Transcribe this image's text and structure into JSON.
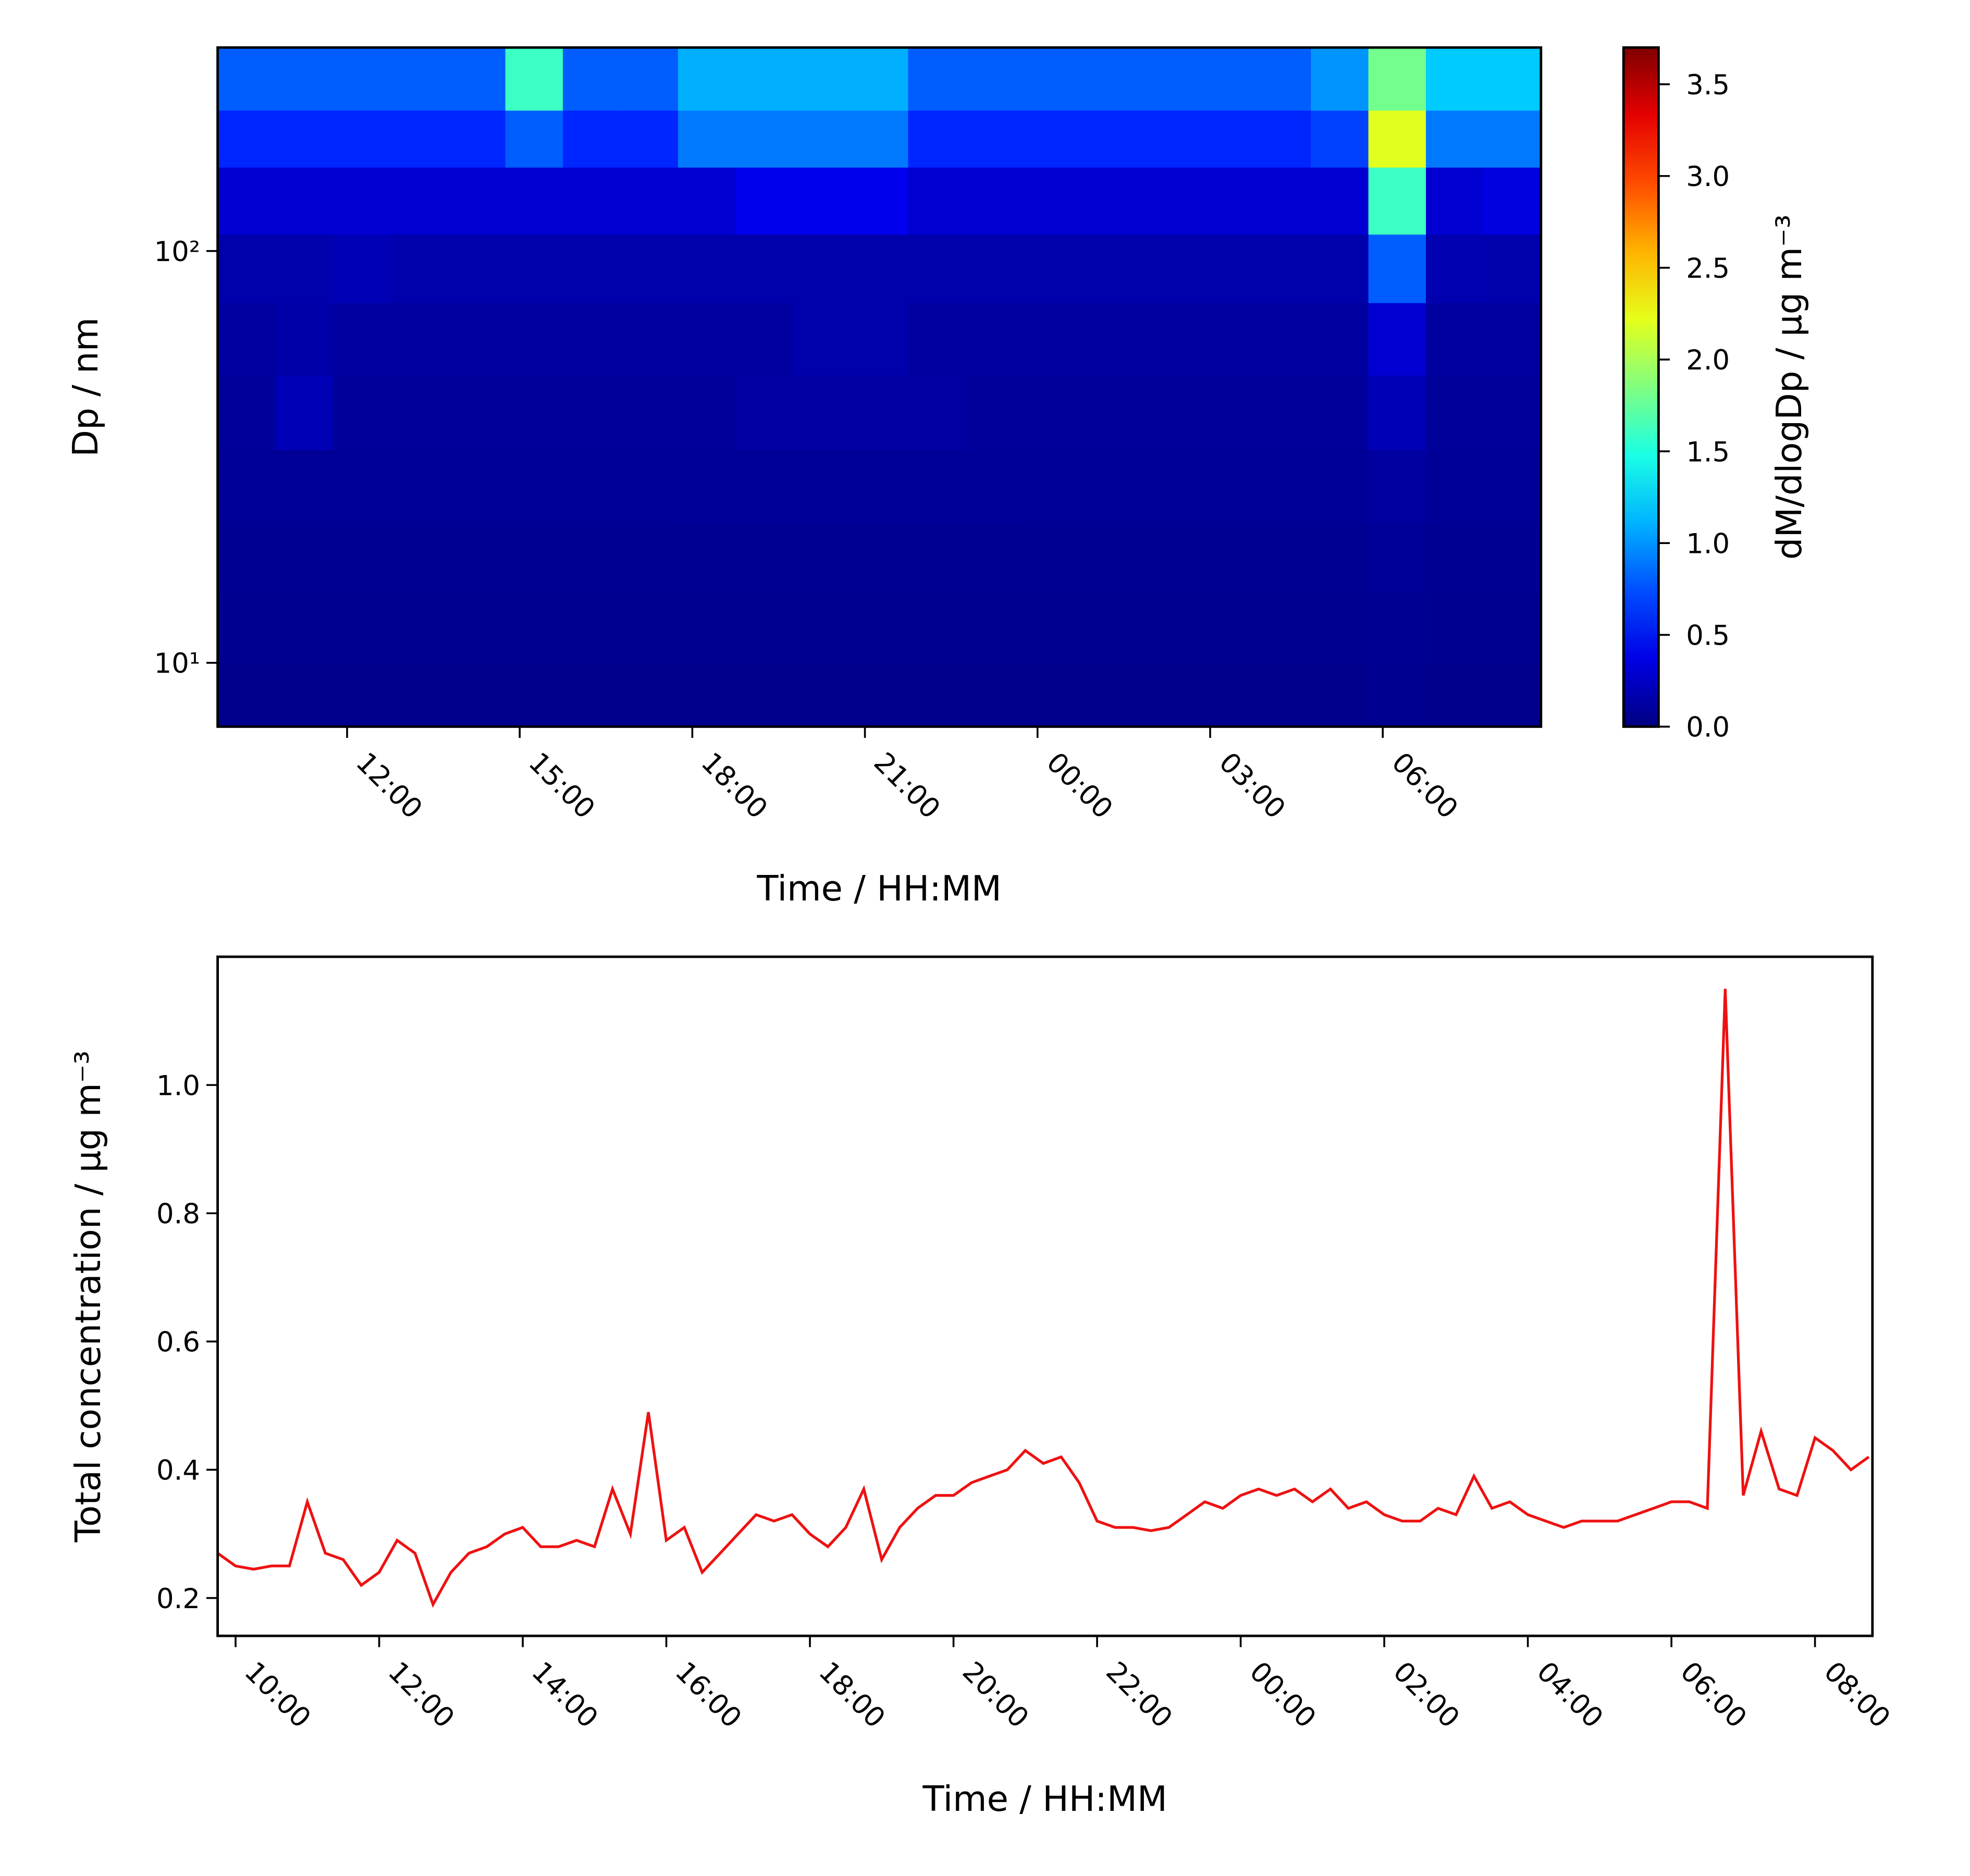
{
  "chart_data": [
    {
      "type": "heatmap",
      "colormap": "jet",
      "yscale": "log",
      "xlabel": "Time / HH:MM",
      "ylabel": "Dp / nm",
      "xlim": [
        9.75,
        32.75
      ],
      "ylim": [
        7,
        312
      ],
      "xticks": [
        {
          "value": 12,
          "label": "12:00"
        },
        {
          "value": 15,
          "label": "15:00"
        },
        {
          "value": 18,
          "label": "18:00"
        },
        {
          "value": 21,
          "label": "21:00"
        },
        {
          "value": 24,
          "label": "00:00"
        },
        {
          "value": 27,
          "label": "03:00"
        },
        {
          "value": 30,
          "label": "06:00"
        }
      ],
      "yticks": [
        {
          "value": 10,
          "label": "10¹"
        },
        {
          "value": 100,
          "label": "10²"
        }
      ],
      "xbins": [
        9.75,
        10.75,
        11.75,
        12.75,
        13.75,
        14.75,
        15.75,
        16.75,
        17.75,
        18.75,
        19.75,
        20.75,
        21.75,
        22.75,
        23.75,
        24.75,
        25.75,
        26.75,
        27.75,
        28.75,
        29.75,
        30.75,
        31.75,
        32.75
      ],
      "ybins": [
        7,
        10,
        15,
        22,
        33,
        50,
        75,
        110,
        160,
        220,
        312
      ],
      "z": [
        [
          0.05,
          0.05,
          0.05,
          0.05,
          0.05,
          0.05,
          0.05,
          0.05,
          0.05,
          0.05,
          0.05,
          0.05,
          0.05,
          0.05,
          0.05,
          0.05,
          0.05,
          0.05,
          0.05,
          0.05,
          0.06,
          0.05,
          0.05
        ],
        [
          0.06,
          0.06,
          0.06,
          0.06,
          0.06,
          0.06,
          0.06,
          0.06,
          0.06,
          0.06,
          0.06,
          0.06,
          0.06,
          0.06,
          0.06,
          0.06,
          0.06,
          0.06,
          0.06,
          0.06,
          0.07,
          0.06,
          0.06
        ],
        [
          0.07,
          0.07,
          0.07,
          0.07,
          0.07,
          0.07,
          0.07,
          0.07,
          0.07,
          0.07,
          0.07,
          0.07,
          0.07,
          0.07,
          0.07,
          0.07,
          0.07,
          0.07,
          0.07,
          0.07,
          0.09,
          0.07,
          0.07
        ],
        [
          0.08,
          0.08,
          0.08,
          0.08,
          0.08,
          0.08,
          0.08,
          0.08,
          0.09,
          0.09,
          0.09,
          0.09,
          0.09,
          0.09,
          0.08,
          0.08,
          0.08,
          0.08,
          0.08,
          0.08,
          0.12,
          0.08,
          0.08
        ],
        [
          0.1,
          0.2,
          0.1,
          0.1,
          0.1,
          0.1,
          0.1,
          0.1,
          0.1,
          0.13,
          0.13,
          0.13,
          0.13,
          0.1,
          0.1,
          0.1,
          0.1,
          0.1,
          0.1,
          0.1,
          0.2,
          0.1,
          0.1
        ],
        [
          0.12,
          0.15,
          0.12,
          0.12,
          0.12,
          0.12,
          0.12,
          0.12,
          0.12,
          0.12,
          0.16,
          0.16,
          0.12,
          0.12,
          0.12,
          0.12,
          0.12,
          0.12,
          0.12,
          0.12,
          0.3,
          0.12,
          0.12
        ],
        [
          0.16,
          0.16,
          0.2,
          0.16,
          0.16,
          0.16,
          0.16,
          0.16,
          0.16,
          0.16,
          0.16,
          0.16,
          0.16,
          0.16,
          0.16,
          0.16,
          0.16,
          0.16,
          0.16,
          0.16,
          0.8,
          0.18,
          0.16
        ],
        [
          0.3,
          0.3,
          0.3,
          0.3,
          0.3,
          0.3,
          0.3,
          0.3,
          0.3,
          0.4,
          0.4,
          0.4,
          0.3,
          0.3,
          0.3,
          0.3,
          0.3,
          0.3,
          0.3,
          0.3,
          1.6,
          0.3,
          0.35
        ],
        [
          0.6,
          0.6,
          0.6,
          0.6,
          0.6,
          0.8,
          0.6,
          0.6,
          0.9,
          0.9,
          0.9,
          0.9,
          0.6,
          0.6,
          0.6,
          0.6,
          0.6,
          0.6,
          0.6,
          0.7,
          2.2,
          0.9,
          0.9
        ],
        [
          0.8,
          0.8,
          0.8,
          0.8,
          0.8,
          1.6,
          0.8,
          0.8,
          1.1,
          1.1,
          1.1,
          1.1,
          0.8,
          0.8,
          0.8,
          0.8,
          0.8,
          0.8,
          0.8,
          1.0,
          1.8,
          1.2,
          1.2
        ]
      ],
      "colorbar": {
        "label": "dM/dlogDp / μg m⁻³",
        "lim": [
          0,
          3.7
        ],
        "ticks": [
          {
            "value": 0,
            "label": "0.0"
          },
          0.5,
          {
            "value": 1,
            "label": "1.0"
          },
          1.5,
          {
            "value": 2,
            "label": "2.0"
          },
          2.5,
          {
            "value": 3,
            "label": "3.0"
          },
          3.5
        ]
      }
    },
    {
      "type": "line",
      "color": "#ee1111",
      "xlabel": "Time / HH:MM",
      "ylabel": "Total concentration / μg m⁻³",
      "xlim": [
        9.75,
        32.8
      ],
      "ylim": [
        0.141,
        1.2
      ],
      "xticks": [
        {
          "value": 10,
          "label": "10:00"
        },
        {
          "value": 12,
          "label": "12:00"
        },
        {
          "value": 14,
          "label": "14:00"
        },
        {
          "value": 16,
          "label": "16:00"
        },
        {
          "value": 18,
          "label": "18:00"
        },
        {
          "value": 20,
          "label": "20:00"
        },
        {
          "value": 22,
          "label": "22:00"
        },
        {
          "value": 24,
          "label": "00:00"
        },
        {
          "value": 26,
          "label": "02:00"
        },
        {
          "value": 28,
          "label": "04:00"
        },
        {
          "value": 30,
          "label": "06:00"
        },
        {
          "value": 32,
          "label": "08:00"
        }
      ],
      "yticks": [
        0.2,
        0.4,
        0.6,
        0.8,
        {
          "value": 1,
          "label": "1.0"
        }
      ],
      "x": [
        9.75,
        10,
        10.25,
        10.5,
        10.75,
        11,
        11.25,
        11.5,
        11.75,
        12,
        12.25,
        12.5,
        12.75,
        13,
        13.25,
        13.5,
        13.75,
        14,
        14.25,
        14.5,
        14.75,
        15,
        15.25,
        15.5,
        15.75,
        16,
        16.25,
        16.5,
        16.75,
        17,
        17.25,
        17.5,
        17.75,
        18,
        18.25,
        18.5,
        18.75,
        19,
        19.25,
        19.5,
        19.75,
        20,
        20.25,
        20.5,
        20.75,
        21,
        21.25,
        21.5,
        21.75,
        22,
        22.25,
        22.5,
        22.75,
        23,
        23.25,
        23.5,
        23.75,
        24,
        24.25,
        24.5,
        24.75,
        25,
        25.25,
        25.5,
        25.75,
        26,
        26.25,
        26.5,
        26.75,
        27,
        27.25,
        27.5,
        27.75,
        28,
        28.25,
        28.5,
        28.75,
        29,
        29.25,
        29.5,
        29.75,
        30,
        30.25,
        30.5,
        30.75,
        31,
        31.25,
        31.5,
        31.75,
        32,
        32.25,
        32.5,
        32.75
      ],
      "values": [
        0.27,
        0.25,
        0.245,
        0.25,
        0.25,
        0.35,
        0.27,
        0.26,
        0.22,
        0.24,
        0.29,
        0.27,
        0.19,
        0.24,
        0.27,
        0.28,
        0.3,
        0.31,
        0.28,
        0.28,
        0.29,
        0.28,
        0.37,
        0.3,
        0.49,
        0.29,
        0.31,
        0.24,
        0.27,
        0.3,
        0.33,
        0.32,
        0.33,
        0.3,
        0.28,
        0.31,
        0.37,
        0.26,
        0.31,
        0.34,
        0.36,
        0.36,
        0.38,
        0.39,
        0.4,
        0.43,
        0.41,
        0.42,
        0.38,
        0.32,
        0.31,
        0.31,
        0.305,
        0.31,
        0.33,
        0.35,
        0.34,
        0.36,
        0.37,
        0.36,
        0.37,
        0.35,
        0.37,
        0.34,
        0.35,
        0.33,
        0.32,
        0.32,
        0.34,
        0.33,
        0.39,
        0.34,
        0.35,
        0.33,
        0.32,
        0.31,
        0.32,
        0.32,
        0.32,
        0.33,
        0.34,
        0.35,
        0.35,
        0.34,
        1.15,
        0.36,
        0.46,
        0.37,
        0.36,
        0.45,
        0.43,
        0.4,
        0.42
      ]
    }
  ]
}
